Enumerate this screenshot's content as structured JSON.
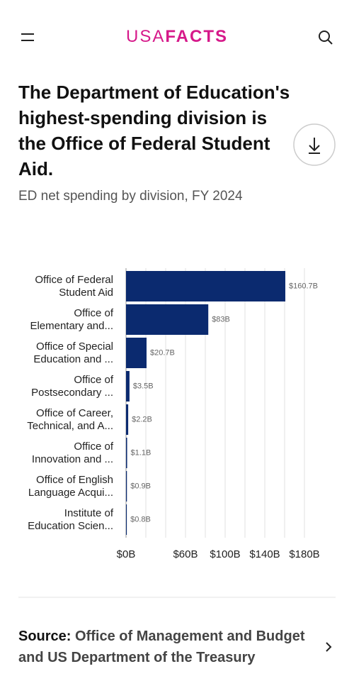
{
  "header": {
    "logo_light": "USA",
    "logo_bold": "FACTS"
  },
  "title": "The Department of Education's highest-spending division is the Office of Federal Student Aid.",
  "subtitle": "ED net spending by division, FY 2024",
  "chart_data": {
    "type": "bar",
    "orientation": "horizontal",
    "categories": [
      "Office of Federal\nStudent Aid",
      "Office of\nElementary and...",
      "Office of Special\nEducation and ...",
      "Office of\nPostsecondary ...",
      "Office of Career,\nTechnical, and A...",
      "Office of\nInnovation and ...",
      "Office of English\nLanguage Acqui...",
      "Institute of\nEducation Scien..."
    ],
    "values": [
      160.7,
      83,
      20.7,
      3.5,
      2.2,
      1.1,
      0.9,
      0.8
    ],
    "value_labels": [
      "$160.7B",
      "$83B",
      "$20.7B",
      "$3.5B",
      "$2.2B",
      "$1.1B",
      "$0.9B",
      "$0.8B"
    ],
    "color": "#0b2a6f",
    "xlim": [
      0,
      180
    ],
    "xticks": [
      {
        "value": 0,
        "label": "$0B"
      },
      {
        "value": 20,
        "label": null
      },
      {
        "value": 40,
        "label": null
      },
      {
        "value": 60,
        "label": "$60B"
      },
      {
        "value": 80,
        "label": null
      },
      {
        "value": 100,
        "label": "$100B"
      },
      {
        "value": 120,
        "label": null
      },
      {
        "value": 140,
        "label": "$140B"
      },
      {
        "value": 160,
        "label": null
      },
      {
        "value": 180,
        "label": "$180B"
      }
    ],
    "grid": true
  },
  "source": {
    "label": "Source:",
    "text": "Office of Management and Budget and US Department of the Treasury"
  }
}
